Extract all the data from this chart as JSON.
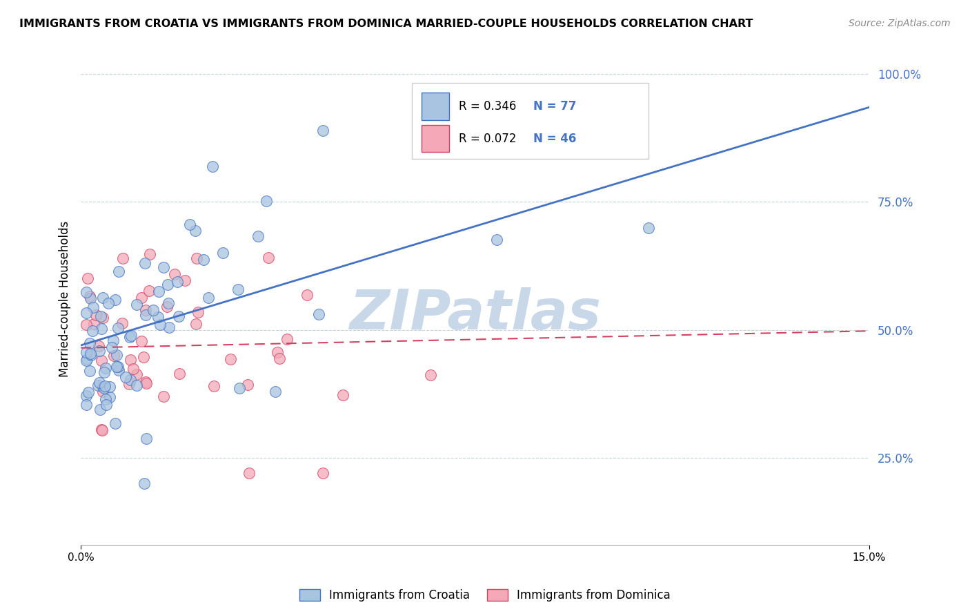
{
  "title": "IMMIGRANTS FROM CROATIA VS IMMIGRANTS FROM DOMINICA MARRIED-COUPLE HOUSEHOLDS CORRELATION CHART",
  "source": "Source: ZipAtlas.com",
  "ylabel": "Married-couple Households",
  "legend_labels": [
    "Immigrants from Croatia",
    "Immigrants from Dominica"
  ],
  "croatia_R": 0.346,
  "croatia_N": 77,
  "dominica_R": 0.072,
  "dominica_N": 46,
  "xlim": [
    0.0,
    0.15
  ],
  "ylim": [
    0.08,
    1.04
  ],
  "yticks": [
    0.25,
    0.5,
    0.75,
    1.0
  ],
  "ytick_labels": [
    "25.0%",
    "50.0%",
    "75.0%",
    "100.0%"
  ],
  "color_croatia": "#a8c4e0",
  "color_dominica": "#f4a8b8",
  "line_color_croatia": "#4472c4",
  "line_color_dominica": "#d44060",
  "watermark": "ZIPatlas",
  "watermark_color": "#c8d8e8",
  "background_color": "#ffffff",
  "croatia_line_y0": 0.47,
  "croatia_line_y1": 0.935,
  "dominica_line_y0": 0.465,
  "dominica_line_y1": 0.498
}
